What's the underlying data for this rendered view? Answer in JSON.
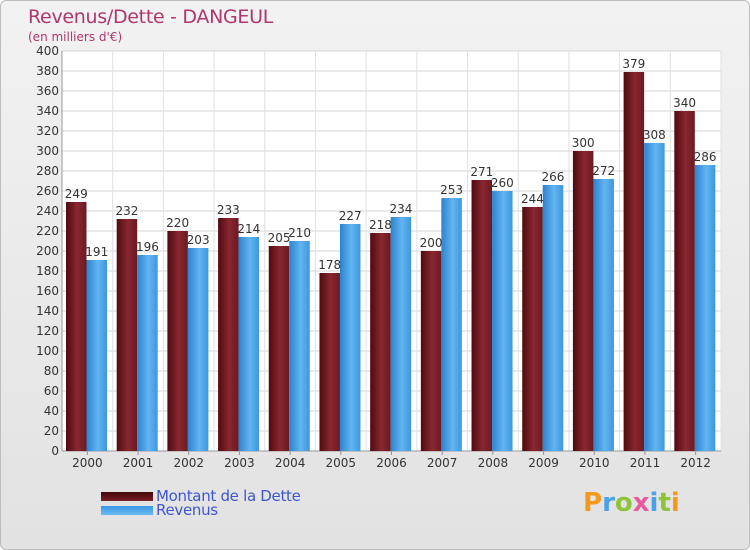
{
  "header": {
    "title": "Revenus/Dette - DANGEUL",
    "subtitle": "(en milliers d'€)"
  },
  "legend": {
    "debt_label": "Montant de la Dette",
    "revenue_label": "Revenus"
  },
  "logo": {
    "text": "Proxiti"
  },
  "colors": {
    "debt": "#7a1f26",
    "revenue": "#4aa3e6",
    "title": "#b0366e",
    "legend_text": "#3f56d0"
  },
  "chart_data": {
    "type": "bar",
    "title": "Revenus/Dette - DANGEUL",
    "subtitle": "(en milliers d'€)",
    "xlabel": "",
    "ylabel": "",
    "categories": [
      "2000",
      "2001",
      "2002",
      "2003",
      "2004",
      "2005",
      "2006",
      "2007",
      "2008",
      "2009",
      "2010",
      "2011",
      "2012"
    ],
    "series": [
      {
        "name": "Montant de la Dette",
        "values": [
          249,
          232,
          220,
          233,
          205,
          178,
          218,
          200,
          271,
          244,
          300,
          379,
          340
        ]
      },
      {
        "name": "Revenus",
        "values": [
          191,
          196,
          203,
          214,
          210,
          227,
          234,
          253,
          260,
          266,
          272,
          308,
          286
        ]
      }
    ],
    "ylim": [
      0,
      400
    ],
    "yticks": [
      0,
      20,
      40,
      60,
      80,
      100,
      120,
      140,
      160,
      180,
      200,
      220,
      240,
      260,
      280,
      300,
      320,
      340,
      360,
      380,
      400
    ],
    "grid": true,
    "legend_position": "bottom-left"
  }
}
